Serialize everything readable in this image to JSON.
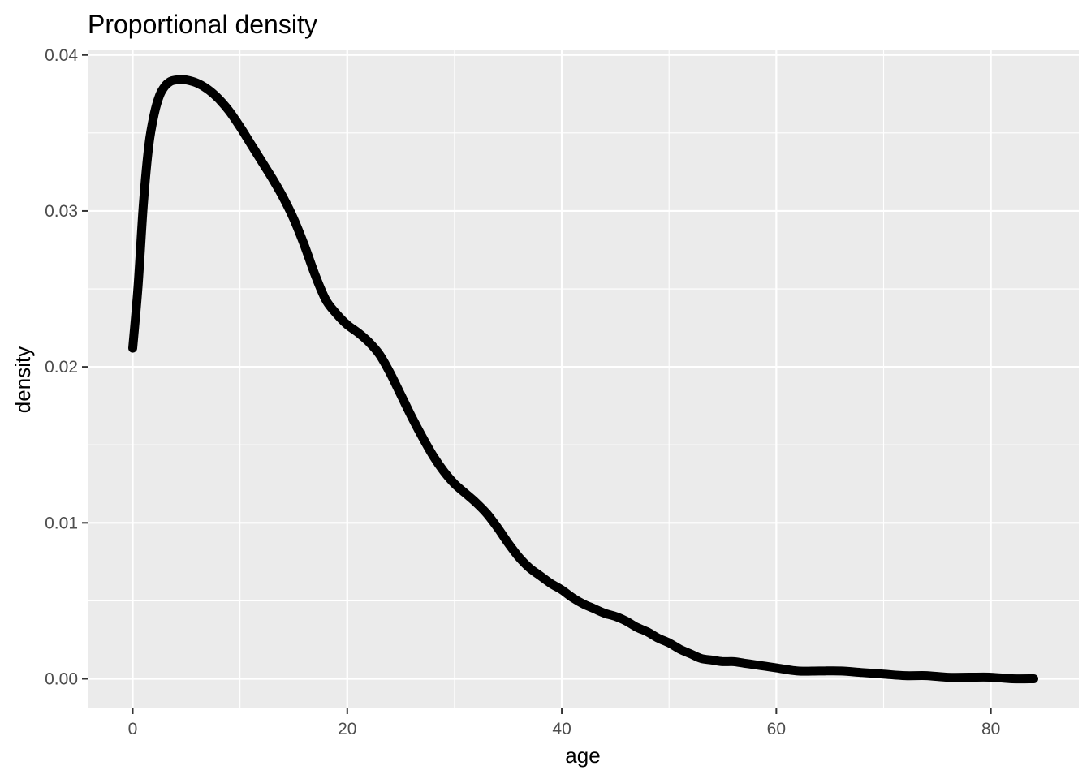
{
  "chart_data": {
    "type": "line",
    "title": "Proportional density",
    "xlabel": "age",
    "ylabel": "density",
    "xlim": [
      -4.2,
      88.2
    ],
    "ylim": [
      -0.0019,
      0.0403
    ],
    "x_ticks": [
      0,
      20,
      40,
      60,
      80
    ],
    "x_tick_labels": [
      "0",
      "20",
      "40",
      "60",
      "80"
    ],
    "x_minor_ticks": [
      10,
      30,
      50,
      70
    ],
    "y_ticks": [
      0.0,
      0.01,
      0.02,
      0.03,
      0.04
    ],
    "y_tick_labels": [
      "0.00",
      "0.01",
      "0.02",
      "0.03",
      "0.04"
    ],
    "y_minor_ticks": [
      0.005,
      0.015,
      0.025,
      0.035
    ],
    "grid": true,
    "legend": "none",
    "colors": {
      "panel_background": "#ebebeb",
      "grid_line": "#ffffff",
      "line": "#000000",
      "tick_label": "#4d4d4d"
    },
    "series": [
      {
        "x": [
          0,
          0.5,
          1,
          1.5,
          2,
          2.5,
          3,
          3.5,
          4,
          4.5,
          5,
          6,
          7,
          8,
          9,
          10,
          11,
          12,
          13,
          14,
          15,
          16,
          17,
          18,
          19,
          20,
          21,
          22,
          23,
          24,
          25,
          26,
          27,
          28,
          29,
          30,
          31,
          32,
          33,
          34,
          35,
          36,
          37,
          38,
          39,
          40,
          41,
          42,
          43,
          44,
          45,
          46,
          47,
          48,
          49,
          50,
          51,
          52,
          53,
          54,
          55,
          56,
          57,
          58,
          59,
          60,
          62,
          64,
          66,
          68,
          70,
          72,
          74,
          76,
          78,
          80,
          82,
          84
        ],
        "y": [
          0.0212,
          0.0252,
          0.0305,
          0.0342,
          0.0362,
          0.0374,
          0.038,
          0.0383,
          0.0384,
          0.0384,
          0.0384,
          0.0382,
          0.0378,
          0.0372,
          0.0364,
          0.0354,
          0.0343,
          0.0332,
          0.0321,
          0.0309,
          0.0295,
          0.0278,
          0.0259,
          0.0243,
          0.0234,
          0.0227,
          0.0222,
          0.0216,
          0.0208,
          0.0196,
          0.0182,
          0.0168,
          0.0155,
          0.0143,
          0.0133,
          0.0125,
          0.0119,
          0.0113,
          0.0106,
          0.0097,
          0.0087,
          0.0078,
          0.0071,
          0.0066,
          0.0061,
          0.0057,
          0.0052,
          0.0048,
          0.0045,
          0.0042,
          0.004,
          0.0037,
          0.0033,
          0.003,
          0.0026,
          0.0023,
          0.0019,
          0.0016,
          0.0013,
          0.0012,
          0.0011,
          0.0011,
          0.001,
          0.0009,
          0.0008,
          0.0007,
          0.0005,
          0.0005,
          0.0005,
          0.0004,
          0.0003,
          0.0002,
          0.0002,
          0.0001,
          0.0001,
          0.0001,
          0.0,
          0.0
        ]
      }
    ]
  }
}
